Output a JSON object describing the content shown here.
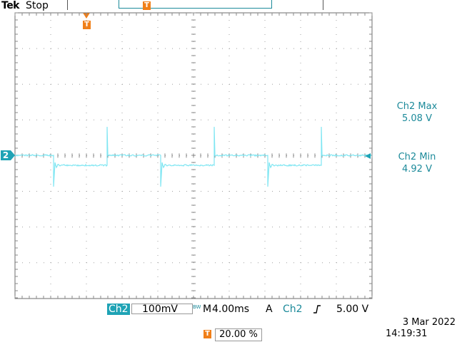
{
  "header": {
    "brand": "Tek",
    "state": "Stop"
  },
  "trigger": {
    "marker_label": "T",
    "position_readout": "20.00 %",
    "source": "Ch2",
    "level": "5.00 V",
    "mode_label": "A",
    "slope": "rising"
  },
  "channel": {
    "marker_label": "2",
    "name": "Ch2",
    "scale": "100mV",
    "bw_label": "BW"
  },
  "timebase": {
    "label": "M",
    "value": "4.00ms"
  },
  "measurements": [
    {
      "label": "Ch2 Max",
      "value": "5.08 V"
    },
    {
      "label": "Ch2 Min",
      "value": "4.92 V"
    }
  ],
  "datetime": {
    "date": "3 Mar  2022",
    "time": "14:19:31"
  },
  "colors": {
    "trace": "#7fe6f2",
    "channel": "#1fa3b5",
    "trigger_marker": "#f07f18",
    "grid": "#a0a0a0"
  }
}
